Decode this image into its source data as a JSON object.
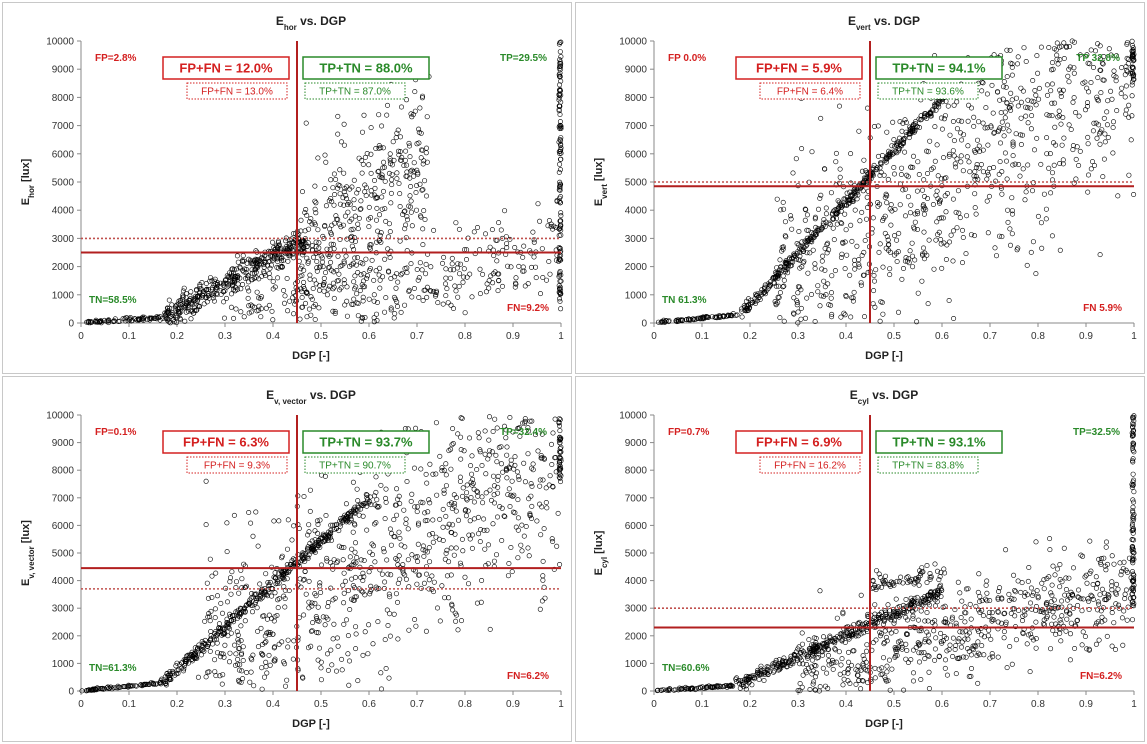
{
  "colors": {
    "threshold_line": "#b21f1f",
    "dotted_line": "#c0504d",
    "fp_fn_text": "#d42020",
    "tp_tn_text": "#2a8a2a",
    "marker_edge": "#000000",
    "panel_border": "#c8c8c8"
  },
  "chart_data": [
    {
      "type": "scatter",
      "title_main": "E",
      "title_sub": "hor",
      "title_rest": " vs. DGP",
      "xlabel": "DGP [-]",
      "ylabel_main": "E",
      "ylabel_sub": "hor",
      "ylabel_rest": " [lux]",
      "xlim": [
        0,
        1
      ],
      "ylim": [
        0,
        10000
      ],
      "xticks": [
        "0",
        "0.1",
        "0.2",
        "0.3",
        "0.4",
        "0.5",
        "0.6",
        "0.7",
        "0.8",
        "0.9",
        "1"
      ],
      "yticks": [
        "0",
        "1000",
        "2000",
        "3000",
        "4000",
        "5000",
        "6000",
        "7000",
        "8000",
        "9000",
        "10000"
      ],
      "threshold_x": 0.45,
      "threshold_y": 2500,
      "dotted_y": 3000,
      "box_red": "FP+FN = 12.0%",
      "box_green": "TP+TN = 88.0%",
      "box_red_dotted": "FP+FN = 13.0%",
      "box_green_dotted": "TP+TN = 87.0%",
      "fp": "FP=2.8%",
      "tp": "TP=29.5%",
      "tn": "TN=58.5%",
      "fn": "FN=9.2%",
      "scatter_clusters": [
        {
          "x0": 0.0,
          "x1": 0.17,
          "y0": 0,
          "y1": 200,
          "spread": 30,
          "n": 80
        },
        {
          "x0": 0.17,
          "x1": 0.47,
          "y0": 200,
          "y1": 3000,
          "spread": 250,
          "n": 420
        },
        {
          "x0": 0.45,
          "x1": 0.72,
          "y0": 2200,
          "y1": 6000,
          "spread": 1500,
          "n": 380
        },
        {
          "x0": 0.55,
          "x1": 1.0,
          "y0": 400,
          "y1": 3000,
          "spread": 800,
          "n": 220
        },
        {
          "x0": 0.3,
          "x1": 0.6,
          "y0": 300,
          "y1": 2000,
          "spread": 500,
          "n": 120
        }
      ],
      "edge_x1_points": {
        "y0": 500,
        "y1": 10000,
        "n": 120
      }
    },
    {
      "type": "scatter",
      "title_main": "E",
      "title_sub": "vert",
      "title_rest": " vs. DGP",
      "xlabel": "DGP [-]",
      "ylabel_main": "E",
      "ylabel_sub": "vert",
      "ylabel_rest": " [lux]",
      "xlim": [
        0,
        1
      ],
      "ylim": [
        0,
        10000
      ],
      "xticks": [
        "0",
        "0.1",
        "0.2",
        "0.3",
        "0.4",
        "0.5",
        "0.6",
        "0.7",
        "0.8",
        "0.9",
        "1"
      ],
      "yticks": [
        "0",
        "1000",
        "2000",
        "3000",
        "4000",
        "5000",
        "6000",
        "7000",
        "8000",
        "9000",
        "10000"
      ],
      "threshold_x": 0.45,
      "threshold_y": 4850,
      "dotted_y": 5000,
      "box_red": "FP+FN = 5.9%",
      "box_green": "TP+TN = 94.1%",
      "box_red_dotted": "FP+FN = 6.4%",
      "box_green_dotted": "TP+TN = 93.6%",
      "fp": "FP 0.0%",
      "tp": "TP 32.8%",
      "tn": "TN 61.3%",
      "fn": "FN 5.9%",
      "scatter_clusters": [
        {
          "x0": 0.0,
          "x1": 0.18,
          "y0": 0,
          "y1": 300,
          "spread": 20,
          "n": 80
        },
        {
          "x0": 0.18,
          "x1": 0.63,
          "y0": 300,
          "y1": 8500,
          "spread": 80,
          "n": 380
        },
        {
          "x0": 0.25,
          "x1": 1.0,
          "y0": 800,
          "y1": 9500,
          "spread": 2200,
          "n": 950
        }
      ],
      "edge_x1_points": {
        "y0": 8500,
        "y1": 10000,
        "n": 30
      }
    },
    {
      "type": "scatter",
      "title_main": "E",
      "title_sub": "v, vector",
      "title_rest": " vs. DGP",
      "xlabel": "DGP [-]",
      "ylabel_main": "E",
      "ylabel_sub": "v, vector",
      "ylabel_rest": " [lux]",
      "xlim": [
        0,
        1
      ],
      "ylim": [
        0,
        10000
      ],
      "xticks": [
        "0",
        "0.1",
        "0.2",
        "0.3",
        "0.4",
        "0.5",
        "0.6",
        "0.7",
        "0.8",
        "0.9",
        "1"
      ],
      "yticks": [
        "0",
        "1000",
        "2000",
        "3000",
        "4000",
        "5000",
        "6000",
        "7000",
        "8000",
        "9000",
        "10000"
      ],
      "threshold_x": 0.45,
      "threshold_y": 4450,
      "dotted_y": 3700,
      "box_red": "FP+FN = 6.3%",
      "box_green": "TP+TN = 93.7%",
      "box_red_dotted": "FP+FN = 9.3%",
      "box_green_dotted": "TP+TN = 90.7%",
      "fp": "FP=0.1%",
      "tp": "TP=32.4%",
      "tn": "TN=61.3%",
      "fn": "FN=6.2%",
      "scatter_clusters": [
        {
          "x0": 0.0,
          "x1": 0.17,
          "y0": 0,
          "y1": 300,
          "spread": 20,
          "n": 80
        },
        {
          "x0": 0.17,
          "x1": 0.6,
          "y0": 300,
          "y1": 7000,
          "spread": 100,
          "n": 380
        },
        {
          "x0": 0.25,
          "x1": 1.0,
          "y0": 800,
          "y1": 9000,
          "spread": 2000,
          "n": 900
        }
      ],
      "edge_x1_points": {
        "y0": 7500,
        "y1": 9900,
        "n": 40
      }
    },
    {
      "type": "scatter",
      "title_main": "E",
      "title_sub": "cyl",
      "title_rest": " vs. DGP",
      "xlabel": "DGP [-]",
      "ylabel_main": "E",
      "ylabel_sub": "cyl",
      "ylabel_rest": " [lux]",
      "xlim": [
        0,
        1
      ],
      "ylim": [
        0,
        10000
      ],
      "xticks": [
        "0",
        "0.1",
        "0.2",
        "0.3",
        "0.4",
        "0.5",
        "0.6",
        "0.7",
        "0.8",
        "0.9",
        "1"
      ],
      "yticks": [
        "0",
        "1000",
        "2000",
        "3000",
        "4000",
        "5000",
        "6000",
        "7000",
        "8000",
        "9000",
        "10000"
      ],
      "threshold_x": 0.45,
      "threshold_y": 2300,
      "dotted_y": 3000,
      "box_red": "FP+FN = 6.9%",
      "box_green": "TP+TN = 93.1%",
      "box_red_dotted": "FP+FN = 16.2%",
      "box_green_dotted": "TP+TN = 83.8%",
      "fp": "FP=0.7%",
      "tp": "TP=32.5%",
      "tn": "TN=60.6%",
      "fn": "FN=6.2%",
      "scatter_clusters": [
        {
          "x0": 0.0,
          "x1": 0.17,
          "y0": 0,
          "y1": 200,
          "spread": 20,
          "n": 80
        },
        {
          "x0": 0.17,
          "x1": 0.6,
          "y0": 200,
          "y1": 3600,
          "spread": 120,
          "n": 360
        },
        {
          "x0": 0.3,
          "x1": 1.0,
          "y0": 700,
          "y1": 3800,
          "spread": 900,
          "n": 650
        },
        {
          "x0": 0.45,
          "x1": 0.62,
          "y0": 3800,
          "y1": 4300,
          "spread": 200,
          "n": 60
        }
      ],
      "edge_x1_points": {
        "y0": 3000,
        "y1": 10000,
        "n": 90
      }
    }
  ]
}
